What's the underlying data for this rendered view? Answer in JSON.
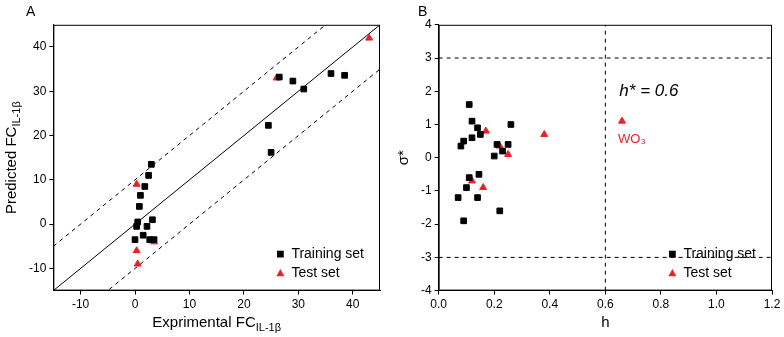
{
  "chart_data": [
    {
      "type": "scatter",
      "title": "A",
      "xlabel": {
        "text": "Exprimental FC",
        "subscript": "IL-1β"
      },
      "ylabel": {
        "text": "Predicted FC",
        "subscript": "IL-1β"
      },
      "xlim": [
        -15,
        45
      ],
      "xticks": [
        -10,
        0,
        10,
        20,
        30,
        40
      ],
      "ylim": [
        -15,
        45
      ],
      "yticks": [
        -10,
        0,
        10,
        20,
        30,
        40
      ],
      "grid": false,
      "legend": "lower right",
      "series": [
        {
          "name": "Training set",
          "color": "#000000",
          "marker": "square",
          "x": [
            24.5,
            25,
            26.5,
            29,
            31,
            36,
            38.5,
            0,
            0.3,
            0.5,
            0.8,
            1,
            1.5,
            1.8,
            2.2,
            2.5,
            2.7,
            3,
            3.2,
            3.5
          ],
          "y": [
            22.3,
            16.2,
            33.2,
            32.3,
            30.5,
            34,
            33.6,
            -3.5,
            -0.5,
            0.5,
            4,
            6.5,
            -2.5,
            8.5,
            -0.5,
            11,
            -3.5,
            13.5,
            1,
            -3.5
          ]
        },
        {
          "name": "Test set",
          "color": "#e8202a",
          "marker": "triangle",
          "x": [
            26,
            43,
            0.3,
            0.3,
            0.5,
            3.5
          ],
          "y": [
            33,
            42,
            9,
            -6,
            -9,
            -4
          ]
        }
      ],
      "reference_lines": [
        {
          "slope": 1,
          "intercept": 0,
          "line_style": "solid"
        },
        {
          "slope": 1,
          "intercept": 10,
          "line_style": "dashed"
        },
        {
          "slope": 1,
          "intercept": -10,
          "line_style": "dashed"
        }
      ]
    },
    {
      "type": "scatter",
      "title": "B",
      "xlabel": {
        "text": "h"
      },
      "ylabel": {
        "text": "σ*"
      },
      "xlim": [
        0,
        1.2
      ],
      "xticks": [
        {
          "value": 0,
          "label": "0.0"
        },
        0.2,
        0.4,
        0.6,
        0.8,
        {
          "value": 1,
          "label": "1.0"
        },
        1.2
      ],
      "ylim": [
        -4,
        4
      ],
      "yticks": [
        -4,
        -3,
        -2,
        -1,
        0,
        1,
        2,
        3,
        4
      ],
      "grid": false,
      "legend": "lower right",
      "annotation": "h* = 0.6",
      "series": [
        {
          "name": "Training set",
          "color": "#000000",
          "marker": "square",
          "x": [
            0.07,
            0.08,
            0.09,
            0.09,
            0.1,
            0.11,
            0.11,
            0.12,
            0.12,
            0.14,
            0.14,
            0.145,
            0.15,
            0.2,
            0.21,
            0.22,
            0.23,
            0.25,
            0.26
          ],
          "y": [
            -1.2,
            0.35,
            -1.9,
            0.5,
            -0.9,
            -0.6,
            1.6,
            1.1,
            0.6,
            0.9,
            -1.2,
            -0.5,
            0.7,
            0.05,
            0.4,
            -1.6,
            0.2,
            0.4,
            1.0
          ]
        },
        {
          "name": "Test set",
          "color": "#e8202a",
          "marker": "triangle",
          "x": [
            0.12,
            0.16,
            0.17,
            0.22,
            0.25,
            0.38,
            0.66
          ],
          "y": [
            -0.7,
            -0.9,
            0.8,
            0.35,
            0.1,
            0.7,
            1.1
          ],
          "point_labels": [
            null,
            null,
            null,
            null,
            null,
            null,
            "WO₃"
          ]
        }
      ],
      "reference_lines": [
        {
          "x": 0.6,
          "line_style": "dashed"
        },
        {
          "y": 3,
          "line_style": "dashed"
        },
        {
          "y": -3,
          "line_style": "dashed"
        }
      ]
    }
  ]
}
